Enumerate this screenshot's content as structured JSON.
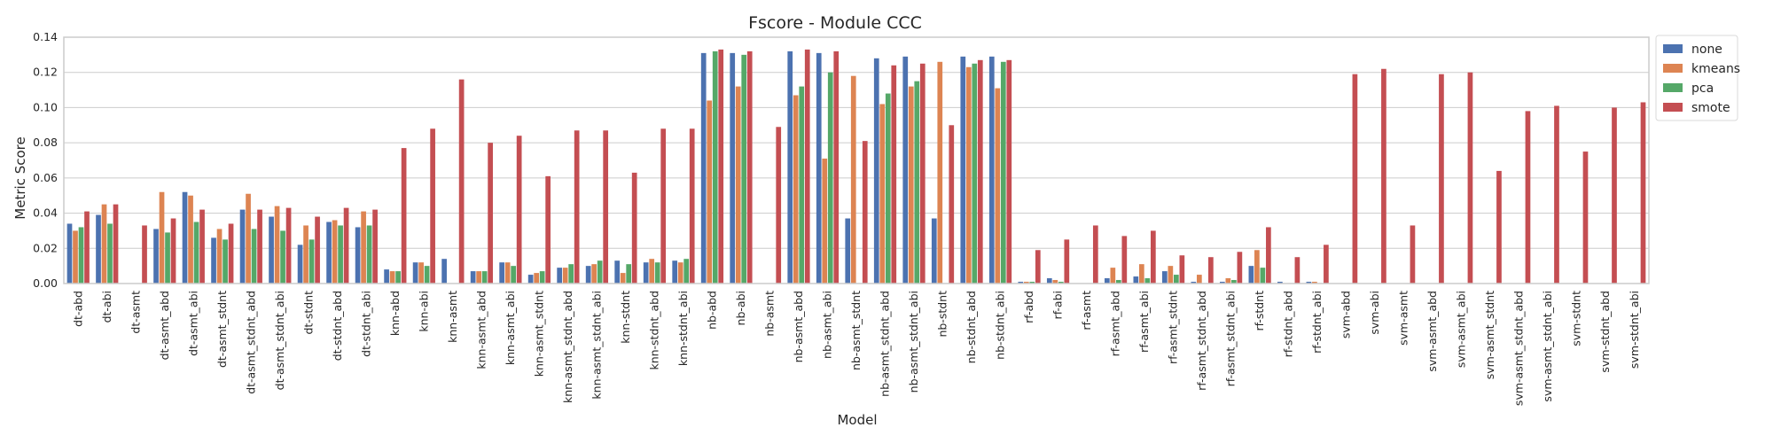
{
  "chart_data": {
    "type": "bar",
    "title": "Fscore - Module CCC",
    "xlabel": "Model",
    "ylabel": "Metric Score",
    "ylim": [
      0,
      0.14
    ],
    "yticks": [
      0.0,
      0.02,
      0.04,
      0.06,
      0.08,
      0.1,
      0.12,
      0.14
    ],
    "ytick_labels": [
      "0.00",
      "0.02",
      "0.04",
      "0.06",
      "0.08",
      "0.10",
      "0.12",
      "0.14"
    ],
    "grid": "horizontal",
    "legend_position": "outside-top-right",
    "categories": [
      "dt-abd",
      "dt-abi",
      "dt-asmt",
      "dt-asmt_abd",
      "dt-asmt_abi",
      "dt-asmt_stdnt",
      "dt-asmt_stdnt_abd",
      "dt-asmt_stdnt_abi",
      "dt-stdnt",
      "dt-stdnt_abd",
      "dt-stdnt_abi",
      "knn-abd",
      "knn-abi",
      "knn-asmt",
      "knn-asmt_abd",
      "knn-asmt_abi",
      "knn-asmt_stdnt",
      "knn-asmt_stdnt_abd",
      "knn-asmt_stdnt_abi",
      "knn-stdnt",
      "knn-stdnt_abd",
      "knn-stdnt_abi",
      "nb-abd",
      "nb-abi",
      "nb-asmt",
      "nb-asmt_abd",
      "nb-asmt_abi",
      "nb-asmt_stdnt",
      "nb-asmt_stdnt_abd",
      "nb-asmt_stdnt_abi",
      "nb-stdnt",
      "nb-stdnt_abd",
      "nb-stdnt_abi",
      "rf-abd",
      "rf-abi",
      "rf-asmt",
      "rf-asmt_abd",
      "rf-asmt_abi",
      "rf-asmt_stdnt",
      "rf-asmt_stdnt_abd",
      "rf-asmt_stdnt_abi",
      "rf-stdnt",
      "rf-stdnt_abd",
      "rf-stdnt_abi",
      "svm-abd",
      "svm-abi",
      "svm-asmt",
      "svm-asmt_abd",
      "svm-asmt_abi",
      "svm-asmt_stdnt",
      "svm-asmt_stdnt_abd",
      "svm-asmt_stdnt_abi",
      "svm-stdnt",
      "svm-stdnt_abd",
      "svm-stdnt_abi"
    ],
    "series": [
      {
        "name": "none",
        "color": "#4c72b0",
        "values": [
          0.034,
          0.039,
          0,
          0.031,
          0.052,
          0.026,
          0.042,
          0.038,
          0.022,
          0.035,
          0.032,
          0.008,
          0.012,
          0.014,
          0.007,
          0.012,
          0.005,
          0.009,
          0.01,
          0.013,
          0.012,
          0.013,
          0.131,
          0.131,
          0,
          0.132,
          0.131,
          0.037,
          0.128,
          0.129,
          0.037,
          0.129,
          0.129,
          0.001,
          0.003,
          0,
          0.003,
          0.004,
          0.007,
          0.001,
          0.001,
          0.01,
          0.001,
          0.001,
          0,
          0,
          0,
          0,
          0,
          0,
          0,
          0,
          0,
          0,
          0
        ]
      },
      {
        "name": "kmeans",
        "color": "#dd8452",
        "values": [
          0.03,
          0.045,
          0,
          0.052,
          0.05,
          0.031,
          0.051,
          0.044,
          0.033,
          0.036,
          0.041,
          0.007,
          0.012,
          0,
          0.007,
          0.012,
          0.006,
          0.009,
          0.011,
          0.006,
          0.014,
          0.012,
          0.104,
          0.112,
          0,
          0.107,
          0.071,
          0.118,
          0.102,
          0.112,
          0.126,
          0.123,
          0.111,
          0.001,
          0.002,
          0,
          0.009,
          0.011,
          0.01,
          0.005,
          0.003,
          0.019,
          0,
          0.001,
          0,
          0,
          0,
          0,
          0,
          0,
          0,
          0,
          0,
          0,
          0
        ]
      },
      {
        "name": "pca",
        "color": "#55a868",
        "values": [
          0.032,
          0.034,
          0,
          0.029,
          0.035,
          0.025,
          0.031,
          0.03,
          0.025,
          0.033,
          0.033,
          0.007,
          0.01,
          0,
          0.007,
          0.01,
          0.007,
          0.011,
          0.013,
          0.011,
          0.012,
          0.014,
          0.132,
          0.13,
          0,
          0.112,
          0.12,
          0,
          0.108,
          0.115,
          0,
          0.125,
          0.126,
          0.001,
          0.001,
          0,
          0.002,
          0.003,
          0.005,
          0,
          0.002,
          0.009,
          0,
          0,
          0,
          0,
          0,
          0,
          0,
          0,
          0,
          0,
          0,
          0,
          0
        ]
      },
      {
        "name": "smote",
        "color": "#c44e52",
        "values": [
          0.041,
          0.045,
          0.033,
          0.037,
          0.042,
          0.034,
          0.042,
          0.043,
          0.038,
          0.043,
          0.042,
          0.077,
          0.088,
          0.116,
          0.08,
          0.084,
          0.061,
          0.087,
          0.087,
          0.063,
          0.088,
          0.088,
          0.133,
          0.132,
          0.089,
          0.133,
          0.132,
          0.081,
          0.124,
          0.125,
          0.09,
          0.127,
          0.127,
          0.019,
          0.025,
          0.033,
          0.027,
          0.03,
          0.016,
          0.015,
          0.018,
          0.032,
          0.015,
          0.022,
          0.119,
          0.122,
          0.033,
          0.119,
          0.12,
          0.064,
          0.098,
          0.101,
          0.075,
          0.1,
          0.103
        ]
      }
    ]
  }
}
